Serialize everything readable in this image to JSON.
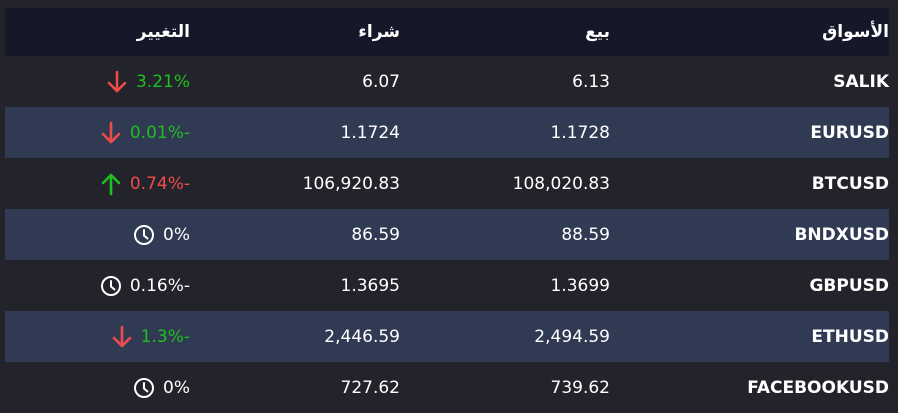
{
  "header": {
    "markets": "الأسواق",
    "sell": "بيع",
    "buy": "شراء",
    "change": "التغيير"
  },
  "colors": {
    "positive": "#1fbf1f",
    "negative": "#f04b4b",
    "header_bg": "#161729",
    "alt_row_bg": "#313a53",
    "bg": "#22232b"
  },
  "rows": [
    {
      "market": "SALIK",
      "sell": "6.13",
      "buy": "6.07",
      "change": "3.21%",
      "change_color": "#1fbf1f",
      "icon": "arrow-down-icon",
      "icon_color": "#f04b4b"
    },
    {
      "market": "EURUSD",
      "sell": "1.1728",
      "buy": "1.1724",
      "change": "0.01%-",
      "change_color": "#1fbf1f",
      "icon": "arrow-down-icon",
      "icon_color": "#f04b4b"
    },
    {
      "market": "BTCUSD",
      "sell": "108,020.83",
      "buy": "106,920.83",
      "change": "0.74%-",
      "change_color": "#f04b4b",
      "icon": "arrow-up-icon",
      "icon_color": "#1fbf1f"
    },
    {
      "market": "BNDXUSD",
      "sell": "88.59",
      "buy": "86.59",
      "change": "0%",
      "change_color": "#ffffff",
      "icon": "clock-icon",
      "icon_color": "#ffffff"
    },
    {
      "market": "GBPUSD",
      "sell": "1.3699",
      "buy": "1.3695",
      "change": "0.16%-",
      "change_color": "#ffffff",
      "icon": "clock-icon",
      "icon_color": "#ffffff"
    },
    {
      "market": "ETHUSD",
      "sell": "2,494.59",
      "buy": "2,446.59",
      "change": "1.3%-",
      "change_color": "#1fbf1f",
      "icon": "arrow-down-icon",
      "icon_color": "#f04b4b"
    },
    {
      "market": "FACEBOOKUSD",
      "sell": "739.62",
      "buy": "727.62",
      "change": "0%",
      "change_color": "#ffffff",
      "icon": "clock-icon",
      "icon_color": "#ffffff"
    }
  ]
}
